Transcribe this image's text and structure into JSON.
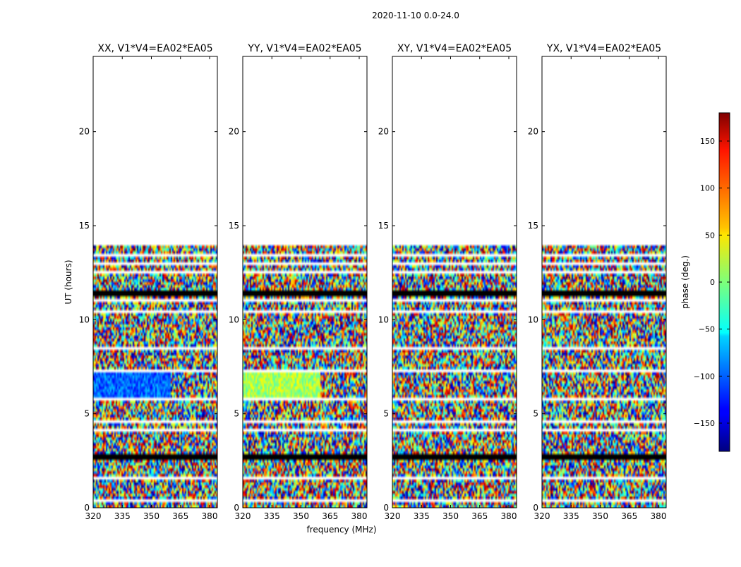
{
  "chart_data": {
    "type": "heatmap",
    "suptitle": "2020-11-10 0.0-24.0",
    "xlabel": "frequency (MHz)",
    "ylabel": "UT (hours)",
    "xlim": [
      320,
      384
    ],
    "ylim": [
      0,
      24
    ],
    "xticks": [
      320,
      335,
      350,
      365,
      380
    ],
    "yticks": [
      0,
      5,
      10,
      15,
      20
    ],
    "data_coverage_hours": [
      0,
      14
    ],
    "panels": [
      {
        "title": "XX, V1*V4=EA02*EA05",
        "coherent_band_hours": [
          5.8,
          7.2
        ],
        "coherent_phase_deg": -100
      },
      {
        "title": "YY, V1*V4=EA02*EA05",
        "coherent_band_hours": [
          5.8,
          7.2
        ],
        "coherent_phase_deg": 15
      },
      {
        "title": "XY, V1*V4=EA02*EA05",
        "coherent_band_hours": null,
        "coherent_phase_deg": null
      },
      {
        "title": "YX, V1*V4=EA02*EA05",
        "coherent_band_hours": null,
        "coherent_phase_deg": null
      }
    ],
    "flagged_rows_hours": [
      [
        0.35,
        0.5
      ],
      [
        1.55,
        1.65
      ],
      [
        2.5,
        2.58
      ],
      [
        2.62,
        2.86
      ],
      [
        4.05,
        4.15
      ],
      [
        4.45,
        4.62
      ],
      [
        5.75,
        5.85
      ],
      [
        7.2,
        7.3
      ],
      [
        8.4,
        8.5
      ],
      [
        10.35,
        10.45
      ],
      [
        10.98,
        11.05
      ],
      [
        11.18,
        11.52
      ],
      [
        12.45,
        12.55
      ],
      [
        12.9,
        13.0
      ],
      [
        13.35,
        13.45
      ]
    ],
    "colorbar": {
      "label": "phase (deg.)",
      "range": [
        -180,
        180
      ],
      "ticks": [
        -150,
        -100,
        -50,
        0,
        50,
        100,
        150
      ],
      "colormap": "jet"
    }
  }
}
